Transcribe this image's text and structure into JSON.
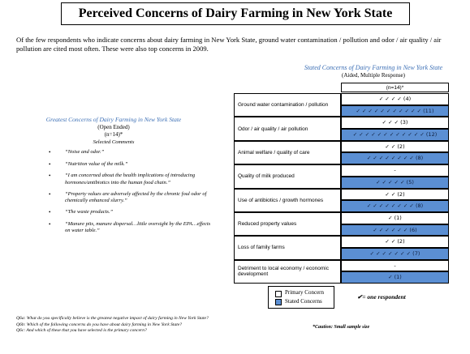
{
  "title": "Perceived Concerns of Dairy Farming in New York State",
  "intro": "Of the few respondents who indicate concerns about dairy farming in New York State, ground water contamination / pollution and odor / air quality / air pollution are cited most often.  These were also top concerns in 2009.",
  "left": {
    "heading": "Greatest Concerns of Dairy Farming in New York State",
    "sub1": "(Open Ended)",
    "sub2": "(n=14)*",
    "sub3": "Selected Comments",
    "comments": [
      "“Noise and odor.”",
      "“Nutrition value of the milk.”",
      "“I am concerned about the health implications of introducing hormones/antibiotics into the human food chain.”",
      "“Property values are adversely affected by the chronic foul odor of chemically enhanced slurry.”",
      "“The waste products.”",
      "“Manure pits, manure dispersal…little oversight by the EPA…effects on water table.”"
    ]
  },
  "table": {
    "heading": "Stated Concerns of Dairy Farming in New York State",
    "sub": "(Aided, Multiple Response)",
    "n_label": "(n=14)*",
    "rows": [
      {
        "label": "Ground water contamination / pollution",
        "primary": "✓ ✓ ✓ ✓ (4)",
        "stated": "✓ ✓ ✓ ✓ ✓ ✓ ✓ ✓ ✓ ✓ ✓ (11)"
      },
      {
        "label": "Odor / air quality / air pollution",
        "primary": "✓ ✓ ✓ (3)",
        "stated": "✓ ✓ ✓ ✓ ✓ ✓ ✓ ✓ ✓ ✓ ✓ ✓ (12)"
      },
      {
        "label": "Animal welfare / quality of care",
        "primary": "✓ ✓ (2)",
        "stated": "✓ ✓ ✓ ✓ ✓ ✓ ✓ ✓ (8)"
      },
      {
        "label": "Quality of milk produced",
        "primary": "-",
        "stated": "✓ ✓ ✓ ✓ ✓ (5)"
      },
      {
        "label": "Use of antibiotics / growth hormones",
        "primary": "✓ ✓ (2)",
        "stated": "✓ ✓ ✓ ✓ ✓ ✓ ✓ ✓ (8)"
      },
      {
        "label": "Reduced property values",
        "primary": "✓ (1)",
        "stated": "✓ ✓ ✓ ✓ ✓ ✓ (6)"
      },
      {
        "label": "Loss of family farms",
        "primary": "✓ ✓ (2)",
        "stated": "✓ ✓ ✓ ✓ ✓ ✓ ✓ (7)"
      },
      {
        "label": "Detriment to local economy / economic development",
        "primary": "-",
        "stated": "✓ (1)"
      }
    ]
  },
  "legend": {
    "primary": "Primary Concern",
    "stated": "Stated Concerns",
    "key": "✔= one respondent"
  },
  "footnotes": [
    "Q6a: What do you specifically believe is the greatest negative impact of dairy farming in New York State?",
    "Q6b: Which of the following concerns do you have about dairy farming in New York State?",
    "Q6c: And which of these that you have selected is the primary concern?"
  ],
  "caution": "*Caution: Small sample size"
}
